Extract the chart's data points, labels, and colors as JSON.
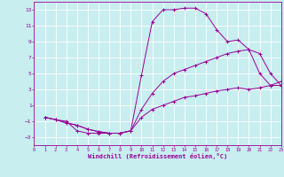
{
  "xlabel": "Windchill (Refroidissement éolien,°C)",
  "bg_color": "#c8eef0",
  "line_color": "#990099",
  "grid_color": "#ffffff",
  "xlim": [
    0,
    23
  ],
  "ylim": [
    -4,
    14
  ],
  "xticks": [
    0,
    1,
    2,
    3,
    4,
    5,
    6,
    7,
    8,
    9,
    10,
    11,
    12,
    13,
    14,
    15,
    16,
    17,
    18,
    19,
    20,
    21,
    22,
    23
  ],
  "yticks": [
    -3,
    -1,
    1,
    3,
    5,
    7,
    9,
    11,
    13
  ],
  "curve1_x": [
    1,
    2,
    3,
    4,
    5,
    6,
    7,
    8,
    9,
    10,
    11,
    12,
    13,
    14,
    15,
    16,
    17,
    18,
    19,
    20,
    21,
    22,
    23
  ],
  "curve1_y": [
    -0.5,
    -0.8,
    -1.0,
    -2.2,
    -2.5,
    -2.5,
    -2.5,
    -2.5,
    -2.2,
    4.8,
    11.5,
    13.0,
    13.0,
    13.2,
    13.2,
    12.5,
    10.5,
    9.0,
    9.2,
    8.0,
    5.0,
    3.5,
    4.0
  ],
  "curve2_x": [
    1,
    2,
    3,
    4,
    5,
    6,
    7,
    8,
    9,
    10,
    11,
    12,
    13,
    14,
    15,
    16,
    17,
    18,
    19,
    20,
    21,
    22,
    23
  ],
  "curve2_y": [
    -0.5,
    -0.8,
    -1.2,
    -1.5,
    -2.0,
    -2.3,
    -2.5,
    -2.5,
    -2.2,
    0.5,
    2.5,
    4.0,
    5.0,
    5.5,
    6.0,
    6.5,
    7.0,
    7.5,
    7.8,
    8.0,
    7.5,
    5.0,
    3.5
  ],
  "curve3_x": [
    1,
    2,
    3,
    4,
    5,
    6,
    7,
    8,
    9,
    10,
    11,
    12,
    13,
    14,
    15,
    16,
    17,
    18,
    19,
    20,
    21,
    22,
    23
  ],
  "curve3_y": [
    -0.5,
    -0.8,
    -1.2,
    -1.5,
    -2.0,
    -2.3,
    -2.5,
    -2.5,
    -2.2,
    -0.5,
    0.5,
    1.0,
    1.5,
    2.0,
    2.2,
    2.5,
    2.8,
    3.0,
    3.2,
    3.0,
    3.2,
    3.5,
    3.5
  ]
}
